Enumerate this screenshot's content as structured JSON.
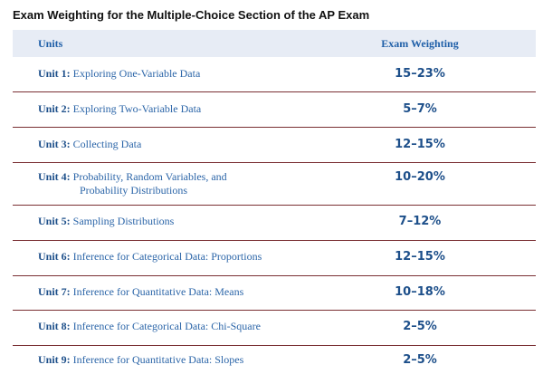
{
  "title": "Exam Weighting for the Multiple-Choice Section of the AP Exam",
  "columns": {
    "units": "Units",
    "weighting": "Exam Weighting"
  },
  "rows": [
    {
      "unit": "Unit 1:",
      "name": "Exploring One-Variable Data",
      "name2": "",
      "weighting": "15–23%"
    },
    {
      "unit": "Unit 2:",
      "name": "Exploring Two-Variable Data",
      "name2": "",
      "weighting": "5–7%"
    },
    {
      "unit": "Unit 3:",
      "name": "Collecting Data",
      "name2": "",
      "weighting": "12–15%"
    },
    {
      "unit": "Unit 4:",
      "name": "Probability, Random Variables, and",
      "name2": "Probability Distributions",
      "weighting": "10–20%"
    },
    {
      "unit": "Unit 5:",
      "name": "Sampling Distributions",
      "name2": "",
      "weighting": "7–12%"
    },
    {
      "unit": "Unit 6:",
      "name": "Inference for Categorical Data: Proportions",
      "name2": "",
      "weighting": "12–15%"
    },
    {
      "unit": "Unit 7:",
      "name": "Inference for Quantitative Data: Means",
      "name2": "",
      "weighting": "10–18%"
    },
    {
      "unit": "Unit 8:",
      "name": "Inference for Categorical Data: Chi-Square",
      "name2": "",
      "weighting": "2–5%"
    },
    {
      "unit": "Unit 9:",
      "name": "Inference for Quantitative Data: Slopes",
      "name2": "",
      "weighting": "2–5%"
    }
  ]
}
